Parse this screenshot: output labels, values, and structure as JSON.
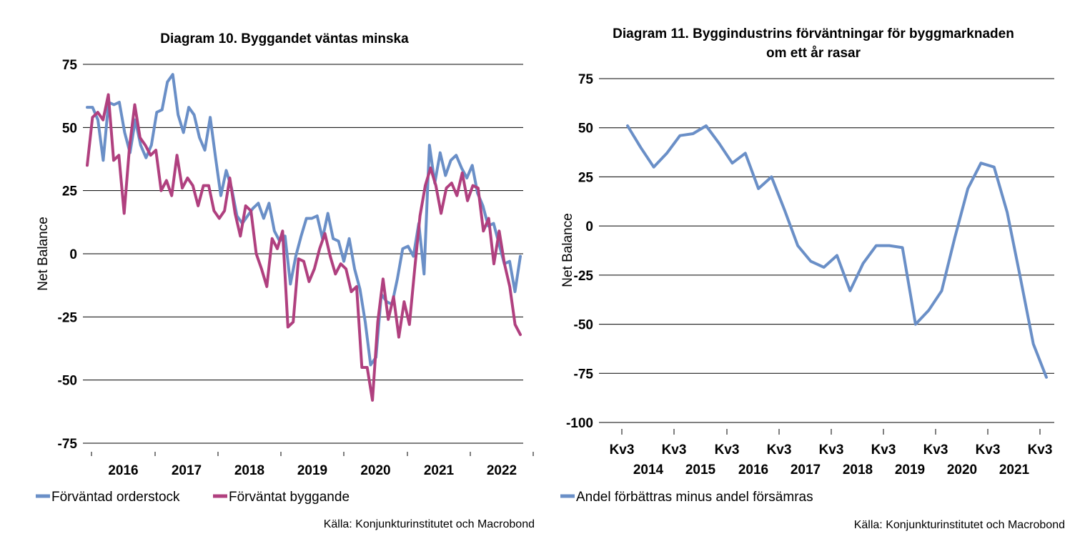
{
  "chart_data": [
    {
      "type": "line",
      "title": "Diagram 10. Byggandet väntas minska",
      "ylabel": "Net Balance",
      "xlabel": "",
      "ylim": [
        -75,
        75
      ],
      "yticks": [
        75,
        50,
        25,
        0,
        -25,
        -50,
        -75
      ],
      "x_tick_labels": [
        "2016",
        "2017",
        "2018",
        "2019",
        "2020",
        "2021",
        "2022"
      ],
      "x_range": [
        "2015-09",
        "2022-09"
      ],
      "x_unit": "month",
      "grid": true,
      "legend_position": "bottom-left",
      "series": [
        {
          "name": "Förväntad orderstock",
          "color": "#6a8fc7",
          "values": [
            58,
            58,
            53,
            37,
            60,
            59,
            60,
            48,
            40,
            53,
            43,
            38,
            43,
            56,
            57,
            68,
            71,
            55,
            48,
            58,
            55,
            46,
            41,
            54,
            38,
            23,
            33,
            26,
            15,
            12,
            15,
            18,
            20,
            14,
            20,
            9,
            5,
            7,
            -12,
            -1,
            7,
            14,
            14,
            15,
            6,
            16,
            6,
            5,
            -3,
            6,
            -6,
            -14,
            -27,
            -44,
            -41,
            -16,
            -19,
            -20,
            -10,
            2,
            3,
            -1,
            12,
            -8,
            43,
            28,
            40,
            31,
            37,
            39,
            34,
            30,
            35,
            24,
            19,
            11,
            12,
            4,
            -4,
            -3,
            -15,
            -1
          ]
        },
        {
          "name": "Förväntat byggande",
          "color": "#b0407f",
          "values": [
            35,
            54,
            56,
            53,
            63,
            37,
            39,
            16,
            42,
            59,
            46,
            43,
            39,
            41,
            25,
            29,
            23,
            39,
            26,
            30,
            27,
            19,
            27,
            27,
            17,
            14,
            17,
            30,
            16,
            7,
            19,
            17,
            0,
            -6,
            -13,
            6,
            2,
            9,
            -29,
            -27,
            -2,
            -3,
            -11,
            -6,
            2,
            8,
            -1,
            -8,
            -4,
            -6,
            -15,
            -13,
            -45,
            -45,
            -58,
            -27,
            -10,
            -26,
            -17,
            -33,
            -19,
            -28,
            -6,
            15,
            27,
            34,
            27,
            16,
            26,
            28,
            23,
            32,
            21,
            27,
            26,
            9,
            14,
            -4,
            9,
            -4,
            -13,
            -28,
            -32
          ]
        }
      ],
      "source": "Källa: Konjunkturinstitutet och Macrobond"
    },
    {
      "type": "line",
      "title": "Diagram 11. Byggindustrins förväntningar för byggmarknaden om ett år rasar",
      "title_lines": [
        "Diagram 11. Byggindustrins förväntningar för byggmarknaden",
        "om ett år rasar"
      ],
      "ylabel": "Net Balance",
      "xlabel": "",
      "ylim": [
        -100,
        75
      ],
      "yticks": [
        75,
        50,
        25,
        0,
        -25,
        -50,
        -75,
        -100
      ],
      "x_tick_labels": [
        [
          "Kv3",
          "2014"
        ],
        [
          "Kv3",
          "2015"
        ],
        [
          "Kv3",
          "2016"
        ],
        [
          "Kv3",
          "2017"
        ],
        [
          "Kv3",
          "2018"
        ],
        [
          "Kv3",
          "2019"
        ],
        [
          "Kv3",
          "2020"
        ],
        [
          "Kv3",
          "2021"
        ],
        [
          "Kv3",
          ""
        ]
      ],
      "x_unit": "quarter",
      "x_range": [
        "2014 Kv3",
        "2022 Kv3"
      ],
      "grid": true,
      "legend_position": "bottom-left",
      "series": [
        {
          "name": "Andel förbättras minus andel försämras",
          "color": "#6a8fc7",
          "values": [
            51,
            40,
            30,
            37,
            46,
            47,
            51,
            42,
            32,
            37,
            19,
            25,
            8,
            -10,
            -18,
            -21,
            -15,
            -33,
            -19,
            -10,
            -10,
            -11,
            -50,
            -43,
            -33,
            -6,
            19,
            32,
            30,
            7,
            -26,
            -60,
            -77
          ]
        }
      ],
      "source": "Källa: Konjunkturinstitutet och Macrobond"
    }
  ]
}
